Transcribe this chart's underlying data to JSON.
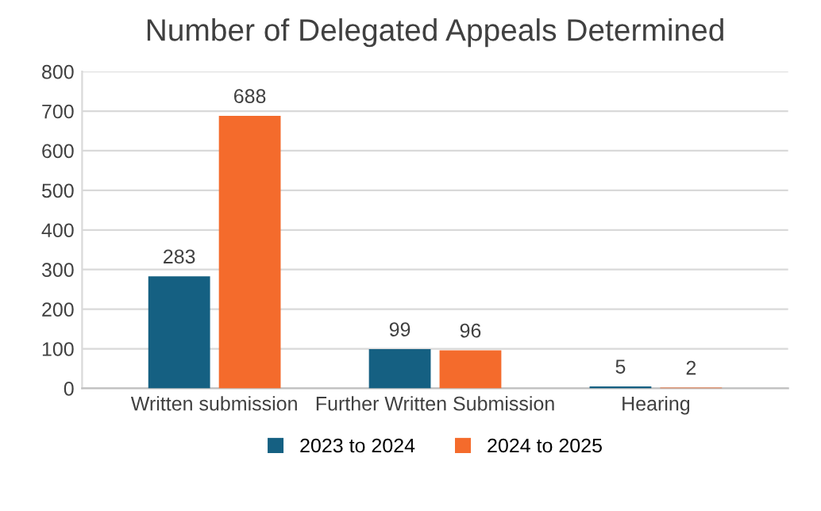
{
  "chart_data": {
    "type": "bar",
    "title": "Number of Delegated Appeals Determined",
    "categories": [
      "Written submission",
      "Further Written Submission",
      "Hearing"
    ],
    "series": [
      {
        "name": "2023 to 2024",
        "color": "#156082",
        "values": [
          283,
          99,
          5
        ]
      },
      {
        "name": "2024 to 2025",
        "color": "#f46b2c",
        "values": [
          688,
          96,
          2
        ]
      }
    ],
    "ylim": [
      0,
      800
    ],
    "yticks": [
      0,
      100,
      200,
      300,
      400,
      500,
      600,
      700,
      800
    ],
    "grid": "y",
    "legend": "bottom",
    "data_labels": true
  }
}
